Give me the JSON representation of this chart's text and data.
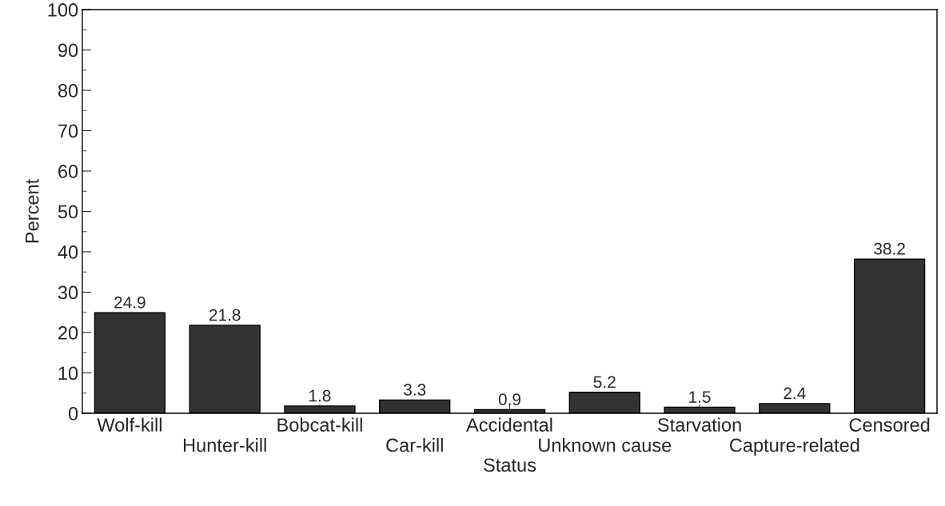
{
  "chart_data": {
    "type": "bar",
    "xlabel": "Status",
    "ylabel": "Percent",
    "categories": [
      "Wolf-kill",
      "Hunter-kill",
      "Bobcat-kill",
      "Car-kill",
      "Accidental",
      "Unknown cause",
      "Starvation",
      "Capture-related",
      "Censored"
    ],
    "values": [
      24.9,
      21.8,
      1.8,
      3.3,
      0.9,
      5.2,
      1.5,
      2.4,
      38.2
    ],
    "color": "#333333",
    "ylim": [
      0,
      100
    ],
    "yticks": [
      0,
      {
        "value": 5,
        "label": null
      },
      10,
      {
        "value": 15,
        "label": null
      },
      20,
      {
        "value": 25,
        "label": null
      },
      30,
      {
        "value": 35,
        "label": null
      },
      40,
      {
        "value": 45,
        "label": null
      },
      50,
      {
        "value": 55,
        "label": null
      },
      60,
      {
        "value": 65,
        "label": null
      },
      70,
      {
        "value": 75,
        "label": null
      },
      80,
      {
        "value": 85,
        "label": null
      },
      90,
      {
        "value": 95,
        "label": null
      },
      100
    ],
    "data_labels": true,
    "grid": false,
    "legend": false
  }
}
